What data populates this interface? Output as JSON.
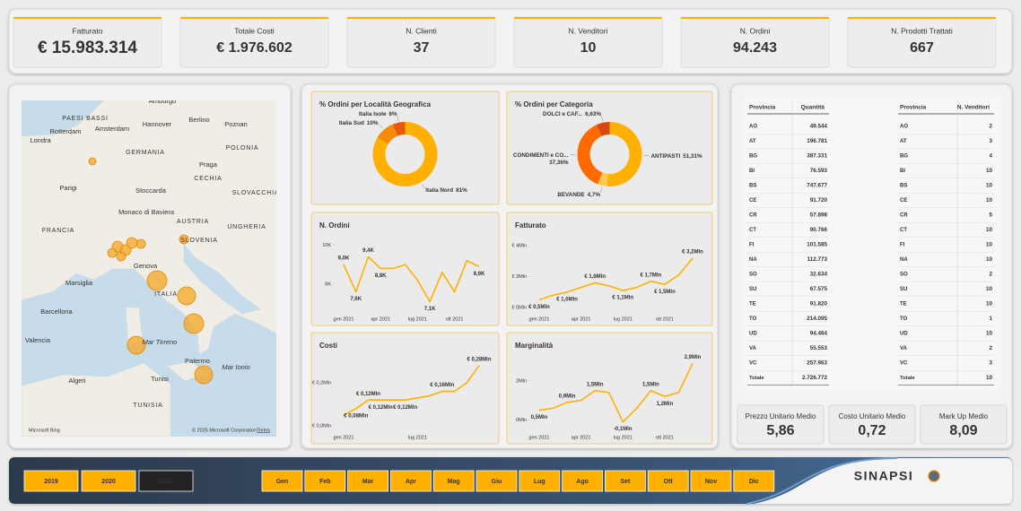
{
  "kpis": [
    {
      "label": "Fatturato",
      "value": "€ 15.983.314"
    },
    {
      "label": "Totale Costi",
      "value": "€ 1.976.602"
    },
    {
      "label": "N. Clienti",
      "value": "37"
    },
    {
      "label": "N. Venditori",
      "value": "10"
    },
    {
      "label": "N. Ordini",
      "value": "94.243"
    },
    {
      "label": "N. Prodotti Trattati",
      "value": "667"
    }
  ],
  "map": {
    "labels": [
      "Amburgo",
      "PAESI BASSI",
      "Rotterdam",
      "Amsterdam",
      "Hannover",
      "Berlino",
      "Poznan",
      "Londra",
      "GERMANIA",
      "POLONIA",
      "Praga",
      "CECHIA",
      "Parigi",
      "Stoccarda",
      "Monaco di Baviera",
      "SLOVACCHIA",
      "FRANCIA",
      "AUSTRIA",
      "UNGHERIA",
      "SLOVENIA",
      "Genova",
      "ITALIA",
      "Marsiglia",
      "Barcellona",
      "Valencia",
      "Mar Tirreno",
      "Palermo",
      "Tunisi",
      "Algeri",
      "TUNISIA",
      "Mar Ionio"
    ],
    "brand": "Microsoft Bing",
    "attribution": "© 2025 Microsoft Corporation",
    "terms": "Terms"
  },
  "chart_data": [
    {
      "type": "donut",
      "title": "% Ordini per Località Geografica",
      "categories": [
        "Italia Nord",
        "Italia Sud",
        "Italia Isole"
      ],
      "values": [
        81,
        10,
        6
      ],
      "value_labels": [
        "81%",
        "10%",
        "6%"
      ],
      "colors": [
        "#ffb000",
        "#f58a07",
        "#e8590c"
      ]
    },
    {
      "type": "donut",
      "title": "% Ordini per Categoria",
      "categories": [
        "ANTIPASTI",
        "BEVANDE",
        "CONDIMENTI e CO...",
        "DOLCI e CAF..."
      ],
      "values": [
        51.31,
        4.7,
        37.36,
        6.63
      ],
      "value_labels": [
        "51,31%",
        "4,7%",
        "37,36%",
        "6,63%"
      ],
      "colors": [
        "#ffb000",
        "#ffc94a",
        "#ff6a00",
        "#d9480f"
      ]
    },
    {
      "type": "line",
      "title": "N. Ordini",
      "categories": [
        "gen 2021",
        null,
        null,
        "apr 2021",
        null,
        null,
        "lug 2021",
        null,
        null,
        "ott 2021",
        null,
        null
      ],
      "values": [
        9000,
        7600,
        9400,
        8800,
        8800,
        9000,
        8200,
        7100,
        8600,
        7600,
        9200,
        8900
      ],
      "value_labels": [
        "9,0K",
        "7,6K",
        "9,4K",
        "8,8K",
        null,
        null,
        null,
        "7,1K",
        null,
        null,
        null,
        "8,9K"
      ],
      "ylim": [
        6800,
        10200
      ],
      "yticks": [
        {
          "value": 8000,
          "label": "8K"
        },
        {
          "value": 10000,
          "label": "10K"
        }
      ],
      "color": "#ffb000"
    },
    {
      "type": "line",
      "title": "Fatturato",
      "categories": [
        "gen 2021",
        null,
        null,
        "apr 2021",
        null,
        null,
        "lug 2021",
        null,
        null,
        "ott 2021",
        null,
        null
      ],
      "values": [
        0.5,
        0.8,
        1.0,
        1.3,
        1.6,
        1.4,
        1.1,
        1.3,
        1.7,
        1.5,
        2.1,
        3.2
      ],
      "value_labels": [
        "€ 0,5Mln",
        null,
        "€ 1,0Mln",
        null,
        "€ 1,6Mln",
        null,
        "€ 1,1Mln",
        null,
        "€ 1,7Mln",
        "€ 1,5Mln",
        null,
        "€ 3,2Mln"
      ],
      "ylim": [
        0,
        4.3
      ],
      "yticks": [
        {
          "value": 0,
          "label": "€ 0Mln"
        },
        {
          "value": 2,
          "label": "€ 2Mln"
        },
        {
          "value": 4,
          "label": "€ 4Mln"
        }
      ],
      "color": "#ffb000"
    },
    {
      "type": "line",
      "title": "Costi",
      "categories": [
        "gen 2021",
        null,
        null,
        null,
        null,
        null,
        "lug 2021",
        null,
        null,
        null,
        null,
        null
      ],
      "values": [
        0.05,
        0.08,
        0.12,
        0.12,
        0.12,
        0.12,
        0.13,
        0.14,
        0.16,
        0.16,
        0.2,
        0.28
      ],
      "value_labels": [
        null,
        "€ 0,08Mln",
        "€ 0,12Mln",
        "€ 0,12Mln",
        null,
        "€ 0,12Mln",
        null,
        null,
        "€ 0,16Mln",
        null,
        null,
        "€ 0,28Mln"
      ],
      "ylim": [
        0,
        0.3
      ],
      "yticks": [
        {
          "value": 0,
          "label": "€ 0,0Mln"
        },
        {
          "value": 0.2,
          "label": "€ 0,2Mln"
        }
      ],
      "color": "#ffb000"
    },
    {
      "type": "line",
      "title": "Marginalità",
      "categories": [
        "gen 2021",
        null,
        null,
        "apr 2021",
        null,
        null,
        "lug 2021",
        null,
        null,
        "ott 2021",
        null,
        null
      ],
      "values": [
        0.5,
        0.6,
        0.9,
        1.0,
        1.5,
        1.4,
        -0.1,
        0.6,
        1.5,
        1.2,
        1.4,
        2.9
      ],
      "value_labels": [
        "0,5Mln",
        null,
        "0,9Mln",
        null,
        "1,5Mln",
        null,
        "-0,1Mln",
        null,
        "1,5Mln",
        "1,2Mln",
        null,
        "2,9Mln"
      ],
      "ylim": [
        -0.3,
        3.0
      ],
      "yticks": [
        {
          "value": 0,
          "label": "0Mln"
        },
        {
          "value": 2,
          "label": "2Mln"
        }
      ],
      "color": "#ffb000"
    }
  ],
  "tables": [
    {
      "columns": [
        "Provincia",
        "Quantità"
      ],
      "rows": [
        [
          "AO",
          "49.544"
        ],
        [
          "AT",
          "196.781"
        ],
        [
          "BG",
          "387.331"
        ],
        [
          "BI",
          "76.593"
        ],
        [
          "BS",
          "747.677"
        ],
        [
          "CE",
          "91.720"
        ],
        [
          "CR",
          "57.898"
        ],
        [
          "CT",
          "90.766"
        ],
        [
          "FI",
          "101.585"
        ],
        [
          "NA",
          "112.773"
        ],
        [
          "SO",
          "32.634"
        ],
        [
          "SU",
          "67.575"
        ],
        [
          "TE",
          "91.820"
        ],
        [
          "TO",
          "214.095"
        ],
        [
          "UD",
          "94.464"
        ],
        [
          "VA",
          "55.553"
        ],
        [
          "VC",
          "257.963"
        ],
        [
          "Totale",
          "2.726.772"
        ]
      ]
    },
    {
      "columns": [
        "Provincia",
        "N. Venditori"
      ],
      "rows": [
        [
          "AO",
          "2"
        ],
        [
          "AT",
          "3"
        ],
        [
          "BG",
          "4"
        ],
        [
          "BI",
          "10"
        ],
        [
          "BS",
          "10"
        ],
        [
          "CE",
          "10"
        ],
        [
          "CR",
          "5"
        ],
        [
          "CT",
          "10"
        ],
        [
          "FI",
          "10"
        ],
        [
          "NA",
          "10"
        ],
        [
          "SO",
          "2"
        ],
        [
          "SU",
          "10"
        ],
        [
          "TE",
          "10"
        ],
        [
          "TO",
          "1"
        ],
        [
          "UD",
          "10"
        ],
        [
          "VA",
          "2"
        ],
        [
          "VC",
          "3"
        ],
        [
          "Totale",
          "10"
        ]
      ]
    }
  ],
  "kpis_bottom": [
    {
      "label": "Prezzo Unitario Medio",
      "value": "5,86"
    },
    {
      "label": "Costo Unitario Medio",
      "value": "0,72"
    },
    {
      "label": "Mark Up Medio",
      "value": "8,09"
    }
  ],
  "slicers": {
    "years": [
      {
        "label": "2019",
        "selected": false
      },
      {
        "label": "2020",
        "selected": false
      },
      {
        "label": "2021",
        "selected": true
      }
    ],
    "months": [
      "Gen",
      "Feb",
      "Mar",
      "Apr",
      "Mag",
      "Giu",
      "Lug",
      "Ago",
      "Set",
      "Ott",
      "Nov",
      "Dic"
    ]
  },
  "logo": "SINAPSI"
}
